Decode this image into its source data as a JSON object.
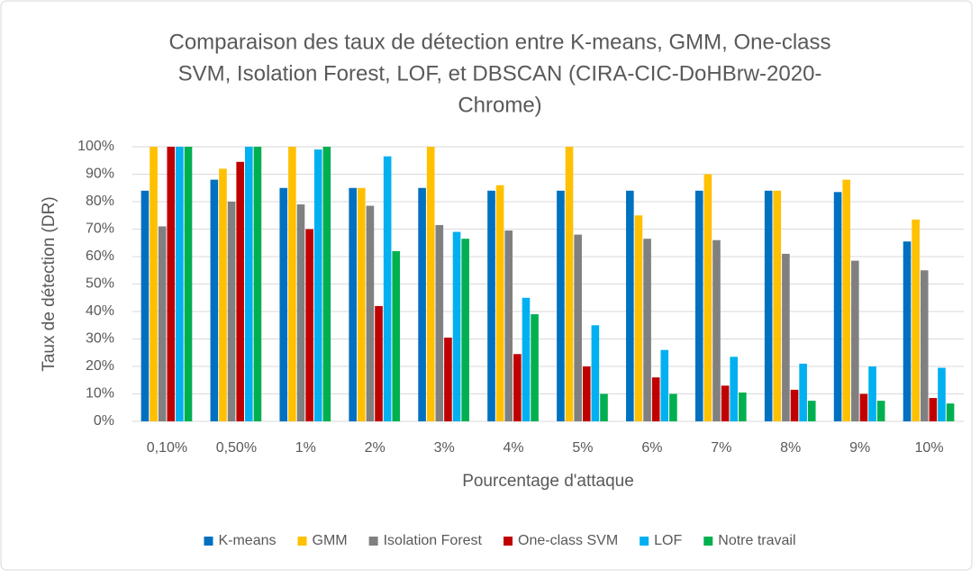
{
  "chart_data": {
    "type": "bar",
    "title": [
      "Comparaison des taux de détection entre K-means, GMM, One-class",
      "SVM, Isolation Forest, LOF, et DBSCAN (CIRA-CIC-DoHBrw-2020-",
      "Chrome)"
    ],
    "x_label": "Pourcentage d'attaque",
    "y_label": "Taux de détection (DR)",
    "categories": [
      "0,10%",
      "0,50%",
      "1%",
      "2%",
      "3%",
      "4%",
      "5%",
      "6%",
      "7%",
      "8%",
      "9%",
      "10%"
    ],
    "series": [
      {
        "name": "K-means",
        "color": "#0070c0",
        "values": [
          84,
          88,
          85,
          85,
          85,
          84,
          84,
          84,
          84,
          84,
          83.5,
          65.5
        ]
      },
      {
        "name": "GMM",
        "color": "#ffc000",
        "values": [
          100,
          92,
          100,
          85,
          100,
          86,
          100,
          75,
          90,
          84,
          88,
          73.5
        ]
      },
      {
        "name": "Isolation Forest",
        "color": "#808080",
        "values": [
          71,
          80,
          79,
          78.5,
          71.5,
          69.5,
          68,
          66.5,
          66,
          61,
          58.5,
          55
        ]
      },
      {
        "name": "One-class SVM",
        "color": "#c00000",
        "values": [
          100,
          94.5,
          70,
          42,
          30.5,
          24.5,
          20,
          16,
          13,
          11.5,
          10,
          8.5
        ]
      },
      {
        "name": "LOF",
        "color": "#00b0f0",
        "values": [
          100,
          100,
          99,
          96.5,
          69,
          45,
          35,
          26,
          23.5,
          21,
          20,
          19.5
        ]
      },
      {
        "name": "Notre travail",
        "color": "#00b050",
        "values": [
          100,
          100,
          100,
          62,
          66.5,
          39,
          10,
          10,
          10.5,
          7.5,
          7.5,
          6.5
        ]
      }
    ],
    "ylim": [
      0,
      100
    ],
    "yticks": [
      {
        "value": 0,
        "label": "0%"
      },
      {
        "value": 10,
        "label": "10%"
      },
      {
        "value": 20,
        "label": "20%"
      },
      {
        "value": 30,
        "label": "30%"
      },
      {
        "value": 40,
        "label": "40%"
      },
      {
        "value": 50,
        "label": "50%"
      },
      {
        "value": 60,
        "label": "60%"
      },
      {
        "value": 70,
        "label": "70%"
      },
      {
        "value": 80,
        "label": "80%"
      },
      {
        "value": 90,
        "label": "90%"
      },
      {
        "value": 100,
        "label": "100%"
      }
    ],
    "grid": true,
    "legend": "bottom"
  }
}
